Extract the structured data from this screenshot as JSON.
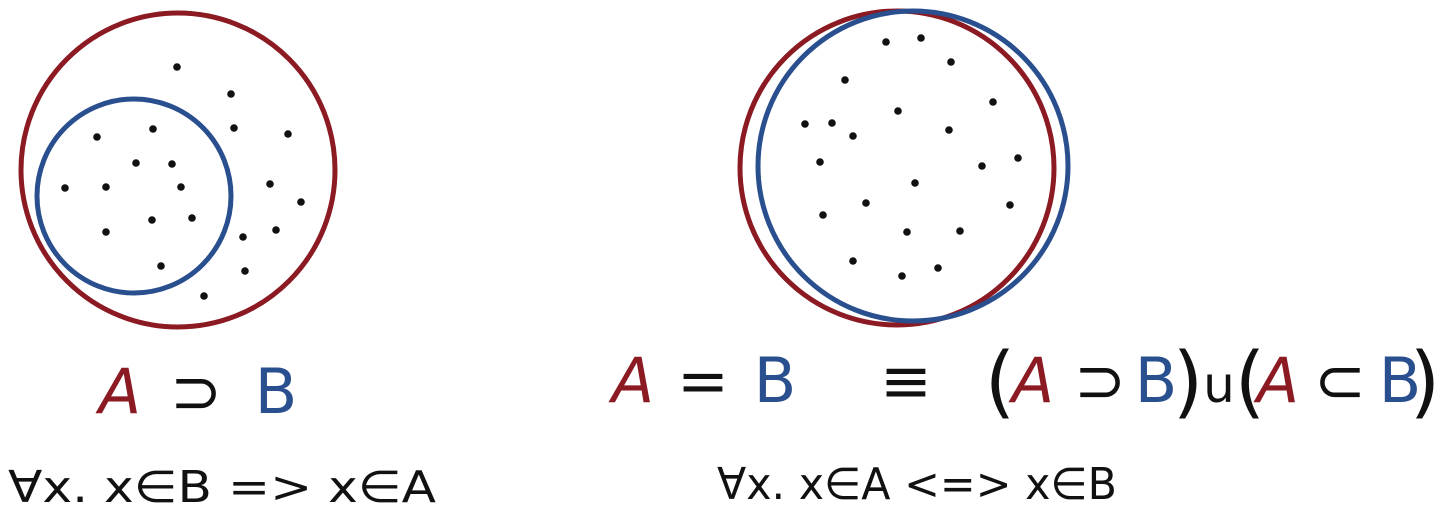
{
  "colors": {
    "set_a": "#8b1a22",
    "set_b": "#2a4f8f",
    "ink": "#111111",
    "background": "#ffffff"
  },
  "diagrams": {
    "superset": {
      "expression": {
        "a": "A",
        "op": "⊃",
        "b": "B"
      },
      "logic": "∀x. x∈B => x∈A"
    },
    "equality": {
      "expression": {
        "a": "A",
        "eq": "=",
        "b": "B",
        "equiv": "≡",
        "open1": "(",
        "a1": "A",
        "op1": "⊃",
        "b1": "B",
        "close1": ")",
        "union": "u",
        "open2": "(",
        "a2": "A",
        "op2": "⊂",
        "b2": "B",
        "close2": ")"
      },
      "logic": "∀x. x∈A <=> x∈B"
    }
  }
}
